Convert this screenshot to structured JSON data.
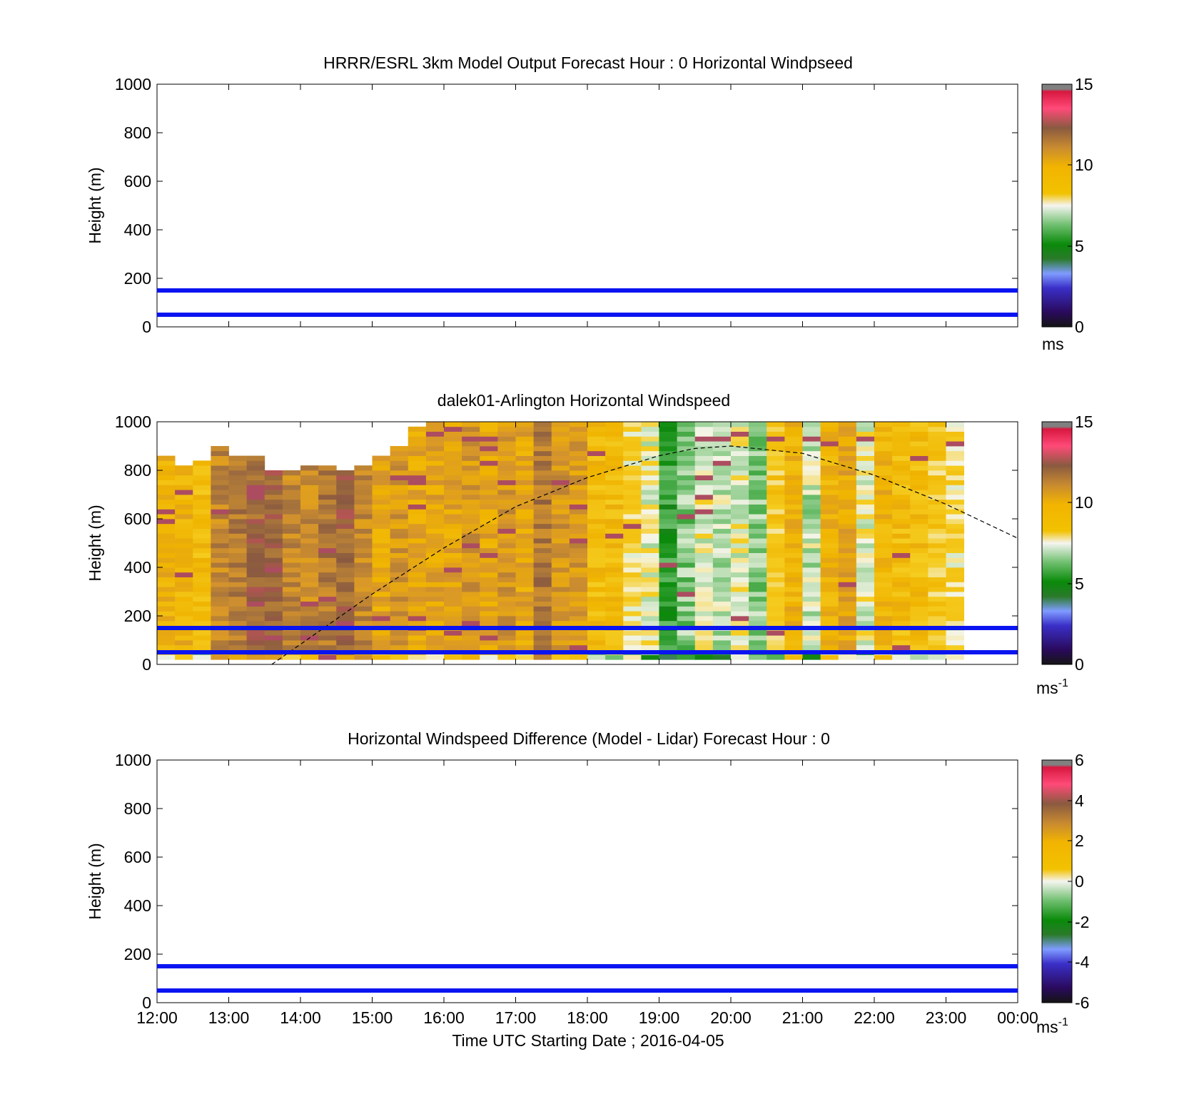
{
  "figure": {
    "xlabel": "Time UTC  Starting Date ; 2016-04-05",
    "x_ticks": [
      "12:00",
      "13:00",
      "14:00",
      "15:00",
      "16:00",
      "17:00",
      "18:00",
      "19:00",
      "20:00",
      "21:00",
      "22:00",
      "23:00",
      "00:00"
    ]
  },
  "chart_data": [
    {
      "type": "heatmap",
      "title": "HRRR/ESRL 3km Model Output   Forecast Hour : 0 Horizontal Windpseed",
      "ylabel": "Height (m)",
      "xlim": [
        12,
        24
      ],
      "ylim": [
        0,
        1000
      ],
      "y_ticks": [
        0,
        200,
        400,
        600,
        800,
        1000
      ],
      "values": [],
      "reference_lines": [
        50,
        150
      ],
      "colorbar": {
        "min": 0,
        "max": 15,
        "ticks": [
          "0",
          "5",
          "10",
          "15"
        ],
        "unit": "ms",
        "unit_sup": ""
      }
    },
    {
      "type": "heatmap",
      "title": "dalek01-Arlington  Horizontal Windspeed",
      "ylabel": "Height (m)",
      "xlim": [
        12,
        24
      ],
      "ylim": [
        0,
        1000
      ],
      "y_ticks": [
        0,
        200,
        400,
        600,
        800,
        1000
      ],
      "reference_lines": [
        50,
        150
      ],
      "data_top_height_m": [
        850,
        820,
        840,
        890,
        860,
        860,
        800,
        800,
        810,
        820,
        800,
        820,
        860,
        900,
        980,
        1000,
        1000,
        1000,
        1000,
        1000,
        1000,
        1000,
        1000,
        1000,
        1000,
        1000,
        1000,
        1000,
        1000,
        1000,
        1000,
        1000,
        1000,
        1000,
        1000,
        1000,
        1000,
        1000,
        1000,
        1000,
        1000,
        1000,
        1000,
        1000,
        1000
      ],
      "column_mean_speed": [
        9.5,
        9.5,
        9,
        11,
        11.5,
        12,
        12,
        11,
        11,
        11.5,
        12,
        11,
        10,
        10.5,
        10,
        10,
        10,
        10.5,
        10,
        10.5,
        10,
        11.5,
        10.5,
        10.5,
        9,
        9,
        8,
        7.5,
        5.5,
        6.5,
        7.5,
        7,
        7.5,
        6.5,
        8.5,
        9.5,
        7,
        9.5,
        10,
        7.5,
        9.5,
        9,
        9,
        8.5,
        8
      ],
      "overlay_curve": {
        "style": "dashed",
        "x": [
          13.6,
          15,
          16,
          17,
          18,
          19,
          19.5,
          20,
          21,
          22,
          23,
          24
        ],
        "y": [
          0,
          290,
          480,
          650,
          770,
          860,
          890,
          900,
          870,
          780,
          660,
          520
        ]
      },
      "colorbar": {
        "min": 0,
        "max": 15,
        "ticks": [
          "0",
          "5",
          "10",
          "15"
        ],
        "unit": "ms",
        "unit_sup": "-1"
      }
    },
    {
      "type": "heatmap",
      "title": "Horizontal Windspeed Difference (Model - Lidar) Forecast Hour : 0",
      "ylabel": "Height (m)",
      "xlim": [
        12,
        24
      ],
      "ylim": [
        0,
        1000
      ],
      "y_ticks": [
        0,
        200,
        400,
        600,
        800,
        1000
      ],
      "values": [],
      "reference_lines": [
        50,
        150
      ],
      "colorbar": {
        "min": -6,
        "max": 6,
        "ticks": [
          "-6",
          "-4",
          "-2",
          "0",
          "2",
          "4",
          "6"
        ],
        "unit": "ms",
        "unit_sup": "-1"
      }
    }
  ],
  "colormap": [
    "#141414",
    "#2a0a5c",
    "#3a2fc8",
    "#7f9cff",
    "#2a7a2a",
    "#0a8a0a",
    "#6fbf6f",
    "#f5f5f0",
    "#f2c200",
    "#e0a020",
    "#a56a3a",
    "#b05060",
    "#ff4070",
    "#e01840",
    "#808080"
  ]
}
